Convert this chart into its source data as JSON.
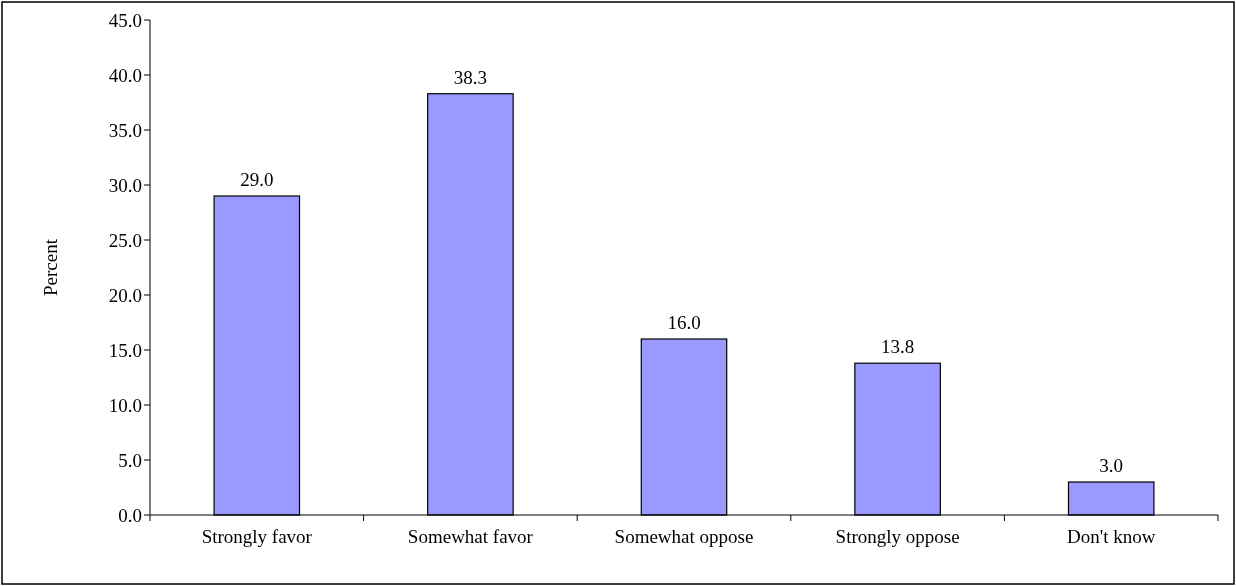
{
  "chart_data": {
    "type": "bar",
    "ylabel": "Percent",
    "categories": [
      "Strongly favor",
      "Somewhat favor",
      "Somewhat oppose",
      "Strongly oppose",
      "Don't know"
    ],
    "values": [
      29.0,
      38.3,
      16.0,
      13.8,
      3.0
    ],
    "value_labels": [
      "29.0",
      "38.3",
      "16.0",
      "13.8",
      "3.0"
    ],
    "color": "#9999ff",
    "ylim": [
      0,
      45
    ],
    "yticks": [
      {
        "value": 0,
        "label": "0.0"
      },
      {
        "value": 5,
        "label": "5.0"
      },
      {
        "value": 10,
        "label": "10.0"
      },
      {
        "value": 15,
        "label": "15.0"
      },
      {
        "value": 20,
        "label": "20.0"
      },
      {
        "value": 25,
        "label": "25.0"
      },
      {
        "value": 30,
        "label": "30.0"
      },
      {
        "value": 35,
        "label": "35.0"
      },
      {
        "value": 40,
        "label": "40.0"
      },
      {
        "value": 45,
        "label": "45.0"
      }
    ],
    "grid": false
  }
}
